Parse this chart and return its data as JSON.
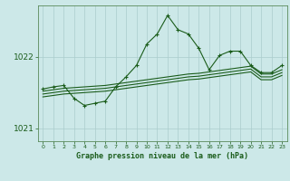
{
  "xlabel_label": "Graphe pression niveau de la mer (hPa)",
  "background_color": "#cce8e8",
  "grid_color": "#aacccc",
  "line_color": "#1a5c1a",
  "hours": [
    0,
    1,
    2,
    3,
    4,
    5,
    6,
    7,
    8,
    9,
    10,
    11,
    12,
    13,
    14,
    15,
    16,
    17,
    18,
    19,
    20,
    21,
    22,
    23
  ],
  "series1": [
    1021.55,
    1021.58,
    1021.6,
    1021.42,
    1021.32,
    1021.35,
    1021.38,
    1021.58,
    1021.72,
    1021.88,
    1022.18,
    1022.32,
    1022.58,
    1022.38,
    1022.32,
    1022.12,
    1021.82,
    1022.02,
    1022.08,
    1022.08,
    1021.88,
    1021.78,
    1021.78,
    1021.88
  ],
  "series2": [
    1021.52,
    1021.54,
    1021.56,
    1021.57,
    1021.58,
    1021.59,
    1021.6,
    1021.62,
    1021.64,
    1021.66,
    1021.68,
    1021.7,
    1021.72,
    1021.74,
    1021.76,
    1021.77,
    1021.79,
    1021.81,
    1021.83,
    1021.85,
    1021.87,
    1021.76,
    1021.76,
    1021.82
  ],
  "series3": [
    1021.48,
    1021.5,
    1021.52,
    1021.53,
    1021.54,
    1021.55,
    1021.56,
    1021.58,
    1021.6,
    1021.62,
    1021.64,
    1021.66,
    1021.68,
    1021.7,
    1021.72,
    1021.73,
    1021.75,
    1021.77,
    1021.79,
    1021.81,
    1021.83,
    1021.72,
    1021.72,
    1021.78
  ],
  "series4": [
    1021.44,
    1021.46,
    1021.48,
    1021.49,
    1021.5,
    1021.51,
    1021.52,
    1021.54,
    1021.56,
    1021.58,
    1021.6,
    1021.62,
    1021.64,
    1021.66,
    1021.68,
    1021.69,
    1021.71,
    1021.73,
    1021.75,
    1021.77,
    1021.79,
    1021.68,
    1021.68,
    1021.74
  ],
  "ylim_min": 1020.82,
  "ylim_max": 1022.72,
  "yticks": [
    1021.0,
    1022.0
  ],
  "ytick_labels": [
    "1021",
    "1022"
  ],
  "xlim_min": -0.5,
  "xlim_max": 23.5,
  "figsize": [
    3.2,
    2.0
  ],
  "dpi": 100
}
